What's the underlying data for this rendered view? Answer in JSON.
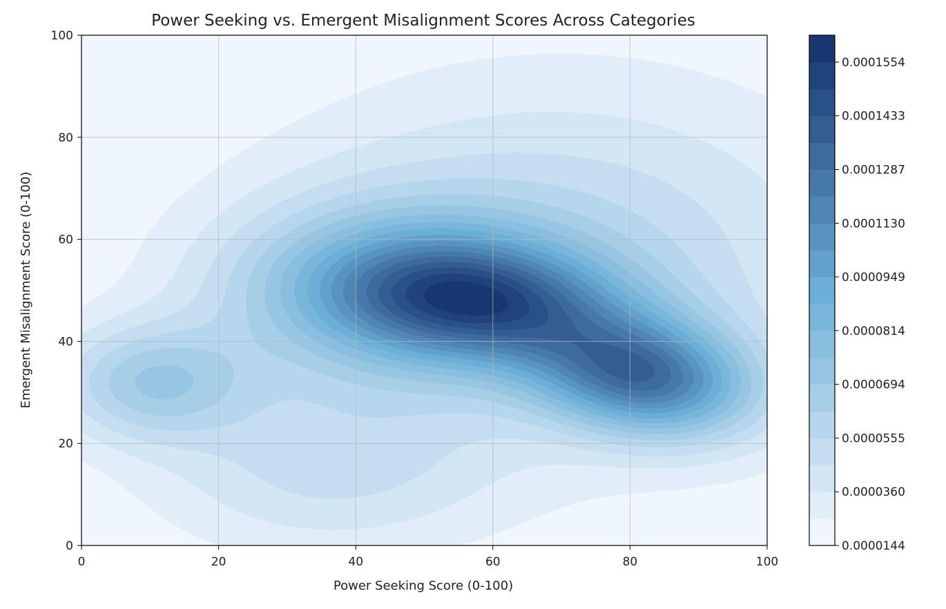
{
  "chart_data": {
    "type": "heatmap",
    "subtype": "kde-filled-contour",
    "title": "Power Seeking vs. Emergent Misalignment Scores Across Categories",
    "xlabel": "Power Seeking Score (0-100)",
    "ylabel": "Emergent Misalignment Score (0-100)",
    "xlim": [
      0,
      100
    ],
    "ylim": [
      0,
      100
    ],
    "xticks": [
      "0",
      "20",
      "40",
      "60",
      "80",
      "100"
    ],
    "yticks": [
      "0",
      "20",
      "40",
      "60",
      "80",
      "100"
    ],
    "grid": true,
    "colormap": "Blues",
    "colors": {
      "low": "#f0f6fd",
      "high": "#183670"
    },
    "density_peaks": [
      {
        "x": 82,
        "y": 33,
        "amplitude": 1.0,
        "sx": 11,
        "sy": 8,
        "rho": -0.2
      },
      {
        "x": 58,
        "y": 48,
        "amplitude": 0.85,
        "sx": 14,
        "sy": 8,
        "rho": -0.15
      },
      {
        "x": 45,
        "y": 50,
        "amplitude": 0.55,
        "sx": 17,
        "sy": 12,
        "rho": 0
      },
      {
        "x": 10,
        "y": 32,
        "amplitude": 0.45,
        "sx": 10,
        "sy": 8,
        "rho": 0
      },
      {
        "x": 35,
        "y": 15,
        "amplitude": 0.25,
        "sx": 18,
        "sy": 12,
        "rho": 0
      },
      {
        "x": 70,
        "y": 55,
        "amplitude": 0.35,
        "sx": 30,
        "sy": 25,
        "rho": 0
      }
    ],
    "colorbar": {
      "ticks": [
        "0.0000144",
        "0.0000360",
        "0.0000555",
        "0.0000694",
        "0.0000814",
        "0.0000949",
        "0.0001130",
        "0.0001287",
        "0.0001433",
        "0.0001554"
      ],
      "levels": 19
    }
  }
}
